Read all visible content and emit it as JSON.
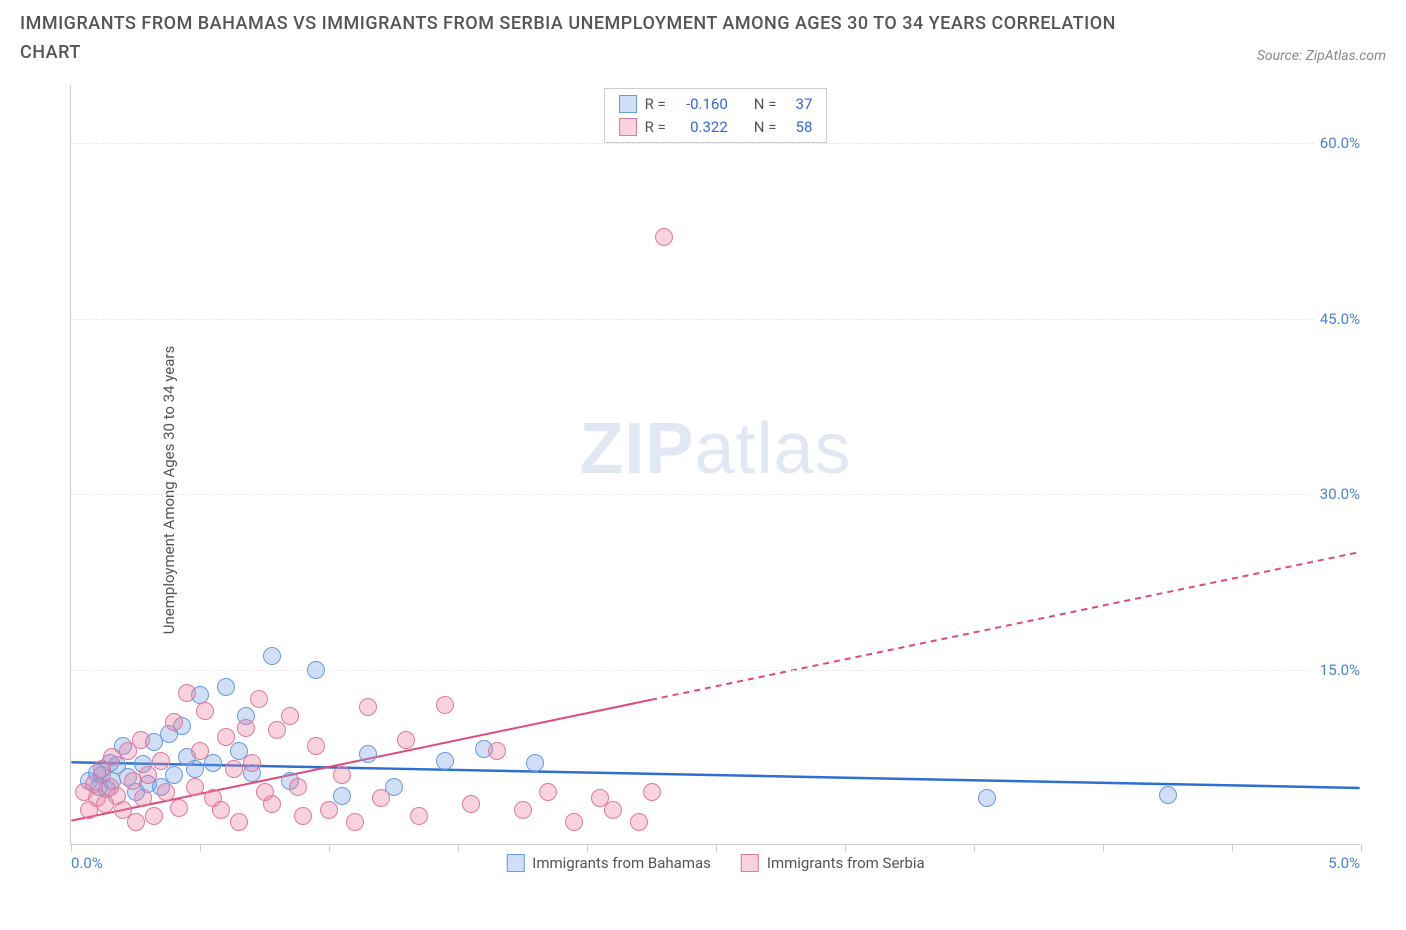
{
  "header": {
    "title": "IMMIGRANTS FROM BAHAMAS VS IMMIGRANTS FROM SERBIA UNEMPLOYMENT AMONG AGES 30 TO 34 YEARS CORRELATION CHART",
    "source": "Source: ZipAtlas.com"
  },
  "chart": {
    "type": "scatter",
    "y_axis_title": "Unemployment Among Ages 30 to 34 years",
    "x_min": 0.0,
    "x_max": 5.0,
    "y_min": 0.0,
    "y_max": 65.0,
    "x_tick_label_left": "0.0%",
    "x_tick_label_right": "5.0%",
    "x_ticks": [
      0.0,
      0.5,
      1.0,
      1.5,
      2.0,
      2.5,
      3.0,
      3.5,
      4.0,
      4.5,
      5.0
    ],
    "y_gridlines": [
      15.0,
      30.0,
      45.0,
      60.0
    ],
    "y_tick_labels": [
      "15.0%",
      "30.0%",
      "45.0%",
      "60.0%"
    ],
    "background_color": "#ffffff",
    "grid_color": "#e8e8e8",
    "axis_color": "#cccccc",
    "tick_label_color": "#4a7fd8",
    "series": [
      {
        "id": "bahamas",
        "name": "Immigrants from Bahamas",
        "color_fill": "rgba(120,160,230,0.35)",
        "color_stroke": "#6a9ae0",
        "marker_radius": 9,
        "R": "-0.160",
        "N": "37",
        "trend": {
          "x1": 0.0,
          "y1": 7.0,
          "x2": 5.0,
          "y2": 4.8,
          "solid_until_x": 5.0,
          "color": "#2f6fd0",
          "width": 2.5
        },
        "points": [
          [
            0.07,
            5.5
          ],
          [
            0.1,
            6.2
          ],
          [
            0.11,
            5.0
          ],
          [
            0.12,
            6.0
          ],
          [
            0.14,
            4.8
          ],
          [
            0.15,
            7.0
          ],
          [
            0.16,
            5.5
          ],
          [
            0.18,
            6.8
          ],
          [
            0.2,
            8.5
          ],
          [
            0.22,
            5.8
          ],
          [
            0.25,
            4.5
          ],
          [
            0.28,
            6.9
          ],
          [
            0.3,
            5.2
          ],
          [
            0.32,
            8.8
          ],
          [
            0.35,
            5.0
          ],
          [
            0.38,
            9.5
          ],
          [
            0.4,
            6.0
          ],
          [
            0.43,
            10.2
          ],
          [
            0.45,
            7.5
          ],
          [
            0.48,
            6.5
          ],
          [
            0.5,
            12.8
          ],
          [
            0.55,
            7.0
          ],
          [
            0.6,
            13.5
          ],
          [
            0.65,
            8.0
          ],
          [
            0.68,
            11.0
          ],
          [
            0.7,
            6.2
          ],
          [
            0.78,
            16.2
          ],
          [
            0.85,
            5.5
          ],
          [
            0.95,
            15.0
          ],
          [
            1.05,
            4.2
          ],
          [
            1.15,
            7.8
          ],
          [
            1.25,
            5.0
          ],
          [
            1.45,
            7.2
          ],
          [
            1.6,
            8.2
          ],
          [
            1.8,
            7.0
          ],
          [
            3.55,
            4.0
          ],
          [
            4.25,
            4.3
          ]
        ]
      },
      {
        "id": "serbia",
        "name": "Immigrants from Serbia",
        "color_fill": "rgba(235,130,160,0.35)",
        "color_stroke": "#e07a9a",
        "marker_radius": 9,
        "R": "0.322",
        "N": "58",
        "trend": {
          "x1": 0.0,
          "y1": 2.0,
          "x2": 5.0,
          "y2": 25.0,
          "solid_until_x": 2.25,
          "color": "#e04a7a",
          "width": 2
        },
        "points": [
          [
            0.05,
            4.5
          ],
          [
            0.07,
            3.0
          ],
          [
            0.09,
            5.2
          ],
          [
            0.1,
            4.0
          ],
          [
            0.12,
            6.5
          ],
          [
            0.13,
            3.5
          ],
          [
            0.15,
            5.0
          ],
          [
            0.16,
            7.5
          ],
          [
            0.18,
            4.2
          ],
          [
            0.2,
            3.0
          ],
          [
            0.22,
            8.0
          ],
          [
            0.24,
            5.5
          ],
          [
            0.25,
            2.0
          ],
          [
            0.27,
            9.0
          ],
          [
            0.28,
            4.0
          ],
          [
            0.3,
            6.0
          ],
          [
            0.32,
            2.5
          ],
          [
            0.35,
            7.2
          ],
          [
            0.37,
            4.5
          ],
          [
            0.4,
            10.5
          ],
          [
            0.42,
            3.2
          ],
          [
            0.45,
            13.0
          ],
          [
            0.48,
            5.0
          ],
          [
            0.5,
            8.0
          ],
          [
            0.52,
            11.5
          ],
          [
            0.55,
            4.0
          ],
          [
            0.58,
            3.0
          ],
          [
            0.6,
            9.2
          ],
          [
            0.63,
            6.5
          ],
          [
            0.65,
            2.0
          ],
          [
            0.68,
            10.0
          ],
          [
            0.7,
            7.0
          ],
          [
            0.73,
            12.5
          ],
          [
            0.75,
            4.5
          ],
          [
            0.78,
            3.5
          ],
          [
            0.8,
            9.8
          ],
          [
            0.85,
            11.0
          ],
          [
            0.88,
            5.0
          ],
          [
            0.9,
            2.5
          ],
          [
            0.95,
            8.5
          ],
          [
            1.0,
            3.0
          ],
          [
            1.05,
            6.0
          ],
          [
            1.1,
            2.0
          ],
          [
            1.15,
            11.8
          ],
          [
            1.2,
            4.0
          ],
          [
            1.3,
            9.0
          ],
          [
            1.35,
            2.5
          ],
          [
            1.45,
            12.0
          ],
          [
            1.55,
            3.5
          ],
          [
            1.65,
            8.0
          ],
          [
            1.75,
            3.0
          ],
          [
            1.85,
            4.5
          ],
          [
            1.95,
            2.0
          ],
          [
            2.05,
            4.0
          ],
          [
            2.1,
            3.0
          ],
          [
            2.2,
            2.0
          ],
          [
            2.25,
            4.5
          ],
          [
            2.3,
            52.0
          ]
        ]
      }
    ],
    "stats_legend": {
      "border_color": "#cccccc",
      "label_R": "R =",
      "label_N": "N ="
    },
    "bottom_legend": {
      "items": [
        "Immigrants from Bahamas",
        "Immigrants from Serbia"
      ]
    },
    "watermark": {
      "text1": "ZIP",
      "text2": "atlas"
    }
  }
}
